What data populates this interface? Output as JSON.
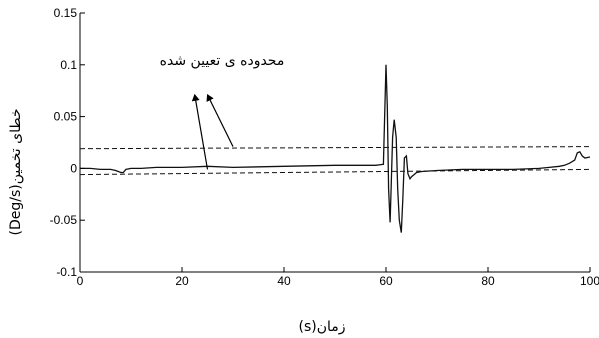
{
  "chart_data": {
    "type": "line",
    "xlabel": "(s)زمان",
    "ylabel": "(Deg/s)خطای تخمین",
    "xlim": [
      0,
      100
    ],
    "ylim": [
      -0.1,
      0.15
    ],
    "xticks": [
      0,
      20,
      40,
      60,
      80,
      100
    ],
    "yticks": [
      -0.1,
      -0.05,
      0,
      0.05,
      0.1,
      0.15
    ],
    "xtick_labels": [
      "0",
      "20",
      "40",
      "60",
      "80",
      "100"
    ],
    "ytick_labels": [
      "-0.1",
      "-0.05",
      "0",
      "0.05",
      "0.1",
      "0.15"
    ],
    "grid": false,
    "annotation": {
      "text": "محدوده ی تعیین شده"
    },
    "series": [
      {
        "style": "solid",
        "x": [
          0,
          2,
          4,
          6,
          7,
          8,
          8.5,
          9,
          10,
          12,
          15,
          20,
          25,
          30,
          40,
          50,
          58,
          59.5,
          60,
          60.25,
          60.5,
          60.8,
          61,
          61.3,
          61.6,
          62,
          62.3,
          62.6,
          63,
          63.3,
          63.6,
          64,
          64.3,
          64.7,
          65,
          65.5,
          66,
          67,
          70,
          75,
          80,
          85,
          90,
          92,
          94,
          95,
          96,
          97,
          97.5,
          98,
          98.5,
          99,
          100
        ],
        "y": [
          0,
          0,
          -0.001,
          -0.001,
          -0.002,
          -0.004,
          -0.004,
          -0.001,
          0,
          0,
          0.001,
          0.001,
          0.002,
          0.001,
          0.002,
          0.003,
          0.003,
          0.004,
          0.1,
          0.06,
          -0.02,
          -0.052,
          -0.02,
          0.03,
          0.047,
          0.03,
          -0.02,
          -0.05,
          -0.062,
          -0.03,
          0.01,
          0.012,
          -0.005,
          -0.01,
          -0.008,
          -0.006,
          -0.004,
          -0.003,
          -0.002,
          -0.001,
          -0.001,
          -0.001,
          0,
          0.001,
          0.002,
          0.003,
          0.005,
          0.008,
          0.015,
          0.016,
          0.012,
          0.01,
          0.011
        ]
      },
      {
        "style": "dashed",
        "x": [
          0,
          100
        ],
        "y": [
          0.019,
          0.021
        ]
      },
      {
        "style": "dashed",
        "x": [
          0,
          100
        ],
        "y": [
          -0.006,
          -0.001
        ]
      }
    ],
    "arrows": [
      {
        "from": [
          30,
          0.021
        ],
        "to": [
          25,
          0.071
        ]
      },
      {
        "from": [
          25,
          -0.001
        ],
        "to": [
          22.5,
          0.071
        ]
      }
    ]
  }
}
